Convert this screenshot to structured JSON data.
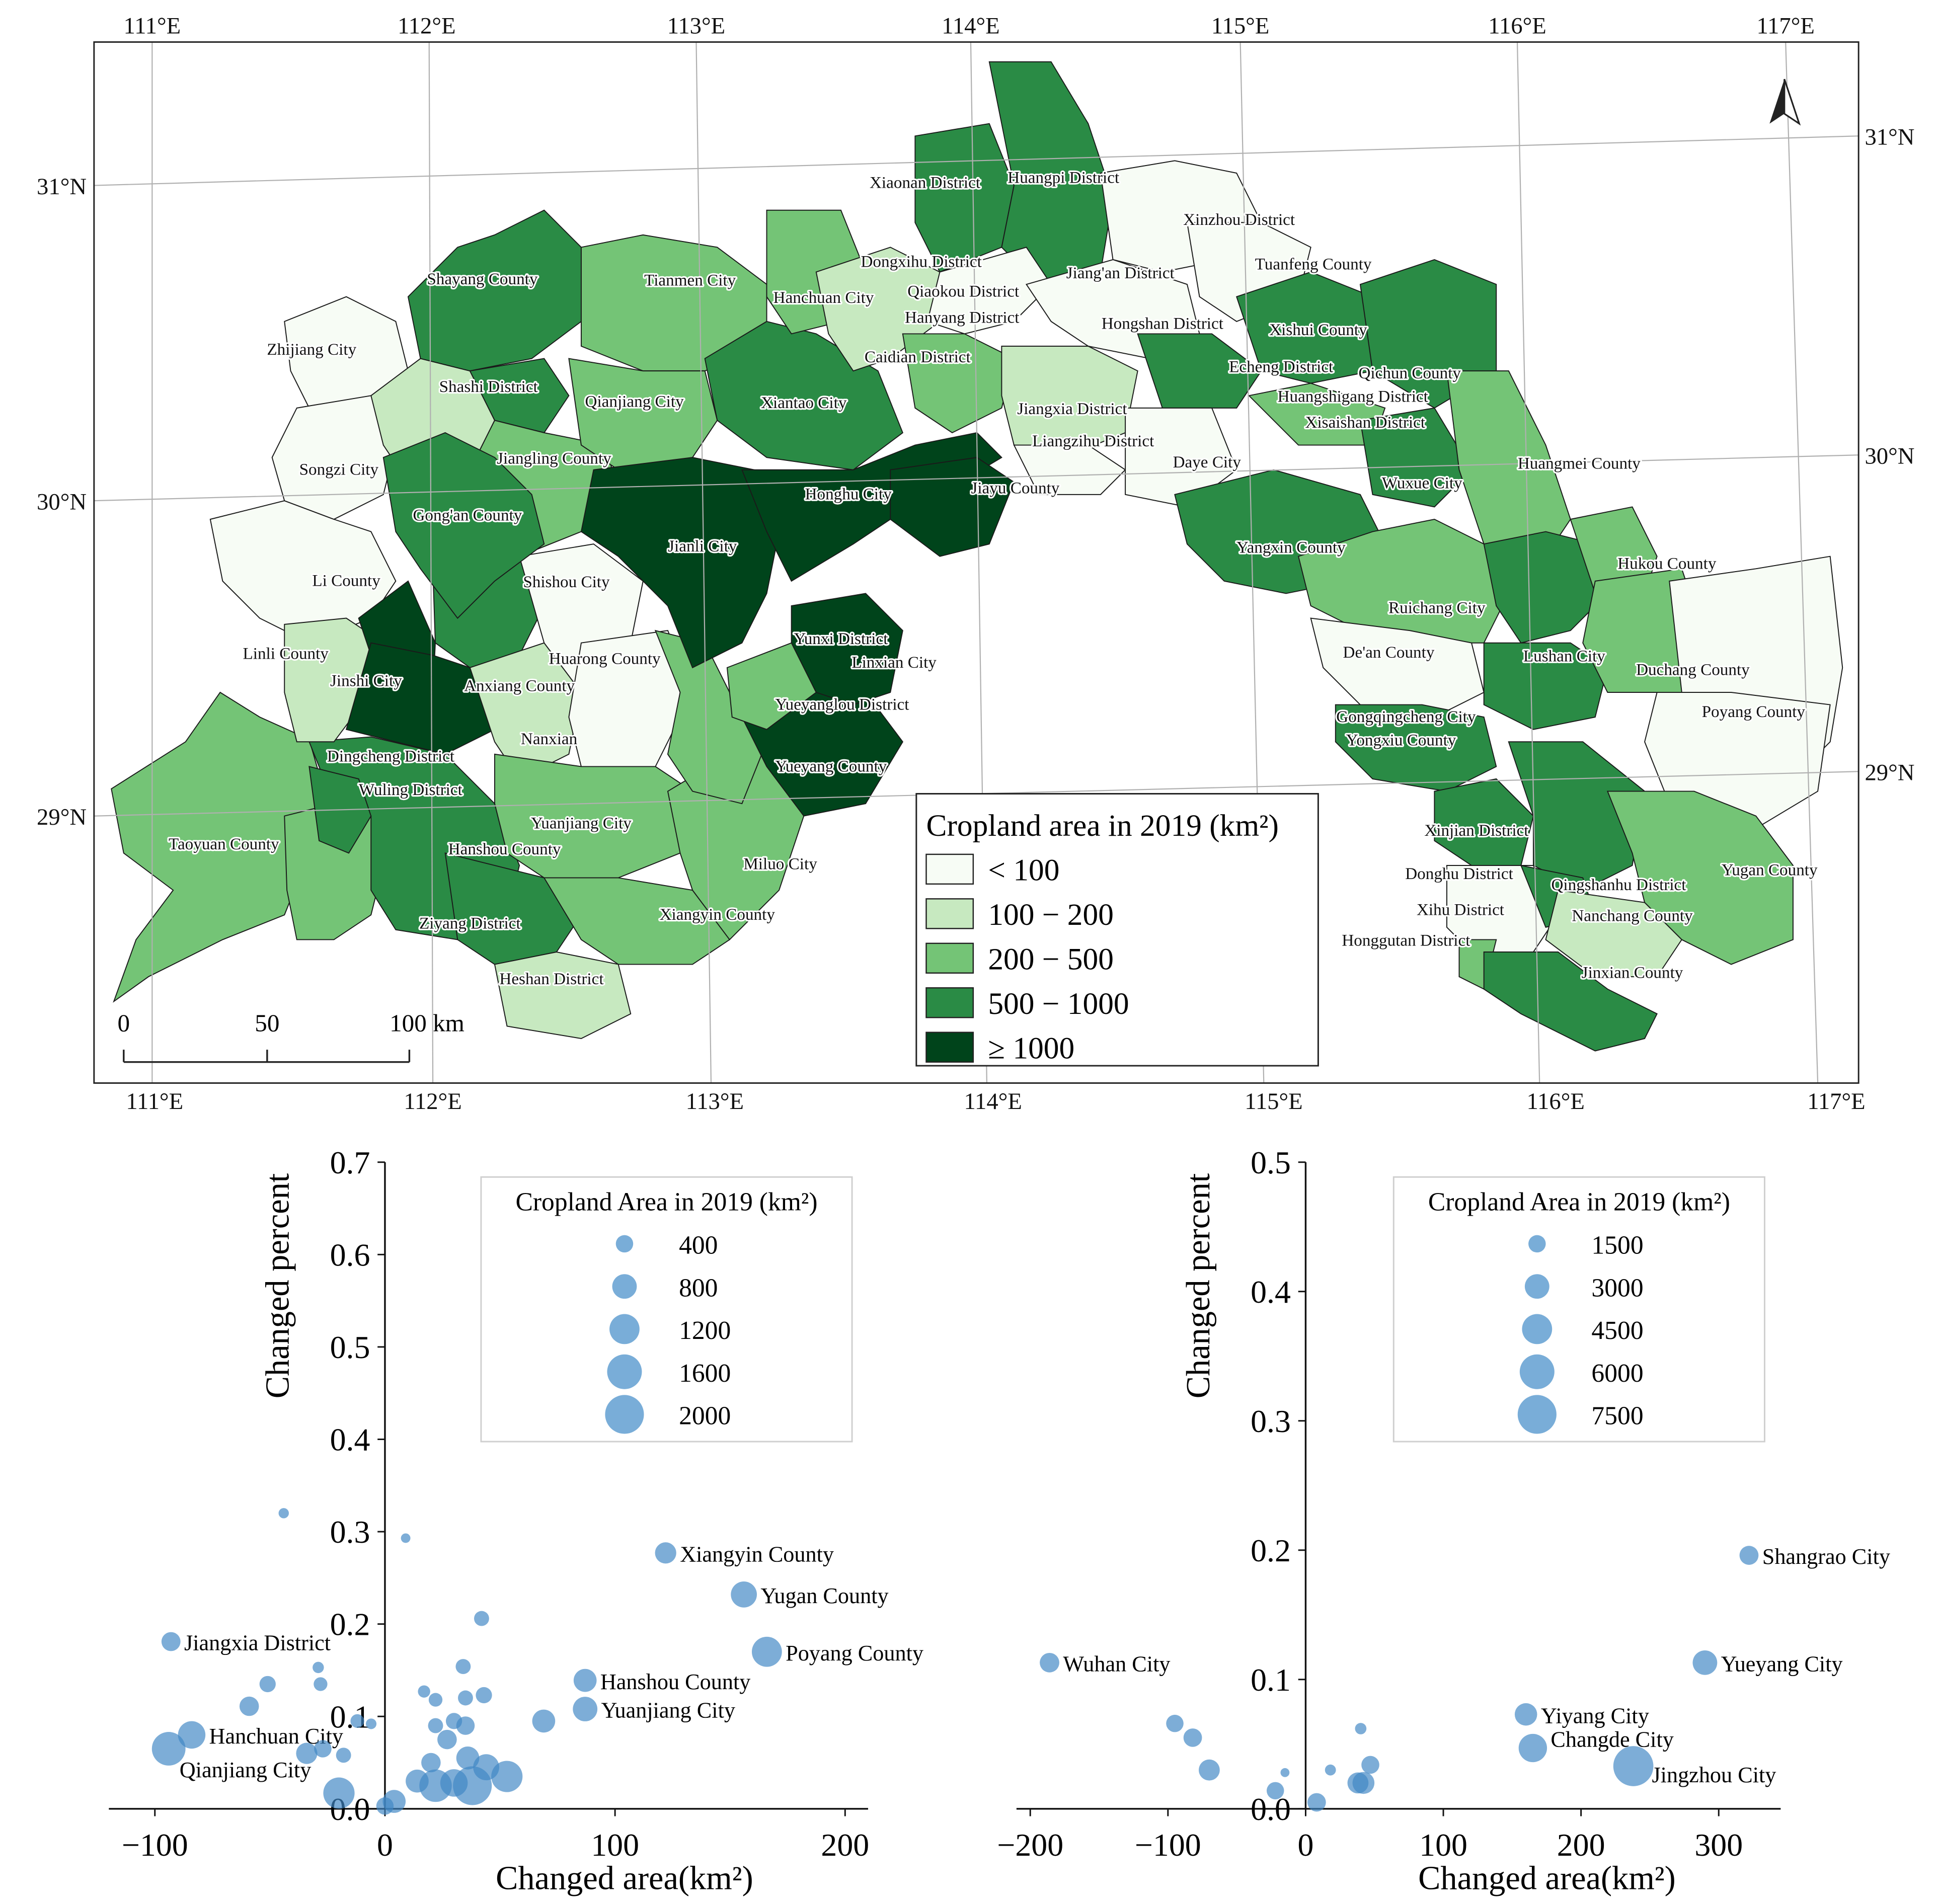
{
  "map": {
    "top_lon_labels": [
      "111°E",
      "112°E",
      "113°E",
      "114°E",
      "115°E",
      "116°E",
      "117°E"
    ],
    "bottom_lon_labels": [
      "111°E",
      "112°E",
      "113°E",
      "114°E",
      "115°E",
      "116°E",
      "117°E"
    ],
    "left_lat_labels": [
      "31°N",
      "30°N",
      "29°N"
    ],
    "right_lat_labels": [
      "31°N",
      "30°N",
      "29°N"
    ],
    "legend": {
      "title": "Cropland area in 2019 (km²)",
      "classes": [
        {
          "label": "< 100",
          "color": "#f7fcf5"
        },
        {
          "label": "100 − 200",
          "color": "#c7e9c0"
        },
        {
          "label": "200 − 500",
          "color": "#74c476"
        },
        {
          "label": "500 − 1000",
          "color": "#2a8b45"
        },
        {
          "label": "≥ 1000",
          "color": "#00441b"
        }
      ]
    },
    "scale_bar": {
      "labels": [
        "0",
        "50",
        "100 km"
      ]
    },
    "north_arrow": "north-arrow",
    "regions": [
      {
        "name": "Xiaonan District",
        "cls": 2
      },
      {
        "name": "Huangpi District",
        "cls": 2
      },
      {
        "name": "Xinzhou District",
        "cls": 3
      },
      {
        "name": "Dongxihu District",
        "cls": 3
      },
      {
        "name": "Jiang'an District",
        "cls": 0
      },
      {
        "name": "Tuanfeng County",
        "cls": 1
      },
      {
        "name": "Shayang County",
        "cls": 4
      },
      {
        "name": "Tianmen City",
        "cls": 4
      },
      {
        "name": "Hanchuan City",
        "cls": 3
      },
      {
        "name": "Qiaokou District",
        "cls": 1
      },
      {
        "name": "Hanyang District",
        "cls": 0
      },
      {
        "name": "Hongshan District",
        "cls": 0
      },
      {
        "name": "Xishui County",
        "cls": 2
      },
      {
        "name": "Zhijiang City",
        "cls": 3
      },
      {
        "name": "Caidian District",
        "cls": 2
      },
      {
        "name": "Echeng District",
        "cls": 1
      },
      {
        "name": "Qichun County",
        "cls": 2
      },
      {
        "name": "Shashi District",
        "cls": 2
      },
      {
        "name": "Qianjiang City",
        "cls": 4
      },
      {
        "name": "Xiantao City",
        "cls": 4
      },
      {
        "name": "Jiangxia District",
        "cls": 2
      },
      {
        "name": "Huangshigang District",
        "cls": 0
      },
      {
        "name": "Xisaishan District",
        "cls": 0
      },
      {
        "name": "Liangzihu District",
        "cls": 1
      },
      {
        "name": "Songzi City",
        "cls": 3
      },
      {
        "name": "Jiangling County",
        "cls": 3
      },
      {
        "name": "Daye City",
        "cls": 2
      },
      {
        "name": "Huangmei County",
        "cls": 3
      },
      {
        "name": "Jiayu County",
        "cls": 2
      },
      {
        "name": "Wuxue City",
        "cls": 2
      },
      {
        "name": "Honghu City",
        "cls": 3
      },
      {
        "name": "Gong'an County",
        "cls": 4
      },
      {
        "name": "Jianli City",
        "cls": 4
      },
      {
        "name": "Yangxin County",
        "cls": 2
      },
      {
        "name": "Hukou County",
        "cls": 1
      },
      {
        "name": "Li County",
        "cls": 3
      },
      {
        "name": "Shishou City",
        "cls": 3
      },
      {
        "name": "Ruichang City",
        "cls": 0
      },
      {
        "name": "Yunxi District",
        "cls": 0
      },
      {
        "name": "Linli County",
        "cls": 3
      },
      {
        "name": "Huarong County",
        "cls": 3
      },
      {
        "name": "De'an County",
        "cls": 0
      },
      {
        "name": "Lushan City",
        "cls": 0
      },
      {
        "name": "Linxian City",
        "cls": 2
      },
      {
        "name": "Jinshi City",
        "cls": 1
      },
      {
        "name": "Anxiang County",
        "cls": 3
      },
      {
        "name": "Duchang County",
        "cls": 2
      },
      {
        "name": "Yueyanglou District",
        "cls": 0
      },
      {
        "name": "Gongqingcheng City",
        "cls": 0
      },
      {
        "name": "Poyang County",
        "cls": 4
      },
      {
        "name": "Nanxian",
        "cls": 3
      },
      {
        "name": "Yongxiu County",
        "cls": 2
      },
      {
        "name": "Dingcheng District",
        "cls": 3
      },
      {
        "name": "Yueyang County",
        "cls": 2
      },
      {
        "name": "Wuling District",
        "cls": 0
      },
      {
        "name": "Yuanjiang City",
        "cls": 3
      },
      {
        "name": "Xinjian District",
        "cls": 3
      },
      {
        "name": "Taoyuan County",
        "cls": 2
      },
      {
        "name": "Hanshou County",
        "cls": 3
      },
      {
        "name": "Miluo City",
        "cls": 2
      },
      {
        "name": "Donghu District",
        "cls": 0
      },
      {
        "name": "Qingshanhu District",
        "cls": 0
      },
      {
        "name": "Yugan County",
        "cls": 3
      },
      {
        "name": "Xiangyin County",
        "cls": 3
      },
      {
        "name": "Ziyang District",
        "cls": 2
      },
      {
        "name": "Xihu District",
        "cls": 0
      },
      {
        "name": "Nanchang County",
        "cls": 3
      },
      {
        "name": "Honggutan District",
        "cls": 1
      },
      {
        "name": "Heshan District",
        "cls": 2
      },
      {
        "name": "Jinxian County",
        "cls": 3
      }
    ]
  },
  "chart_data": [
    {
      "type": "scatter",
      "title": "",
      "xlabel": "Changed area(km²)",
      "ylabel": "Changed percent",
      "xlim": [
        -120,
        210
      ],
      "ylim": [
        0,
        0.7
      ],
      "xticks": [
        "−100",
        "0",
        "100",
        "200"
      ],
      "yticks": [
        "0.0",
        "0.1",
        "0.2",
        "0.3",
        "0.4",
        "0.5",
        "0.6",
        "0.7"
      ],
      "size_legend": {
        "title": "Cropland Area in 2019 (km²)",
        "labels": [
          "400",
          "800",
          "1200",
          "1600",
          "2000"
        ],
        "values": [
          400,
          800,
          1200,
          1600,
          2000
        ]
      },
      "points": [
        {
          "x": 122,
          "y": 0.277,
          "s": 600,
          "label": "Xiangyin County"
        },
        {
          "x": 156,
          "y": 0.232,
          "s": 900,
          "label": "Yugan County"
        },
        {
          "x": 166,
          "y": 0.17,
          "s": 1200,
          "label": "Poyang County"
        },
        {
          "x": 87,
          "y": 0.139,
          "s": 700,
          "label": "Hanshou County"
        },
        {
          "x": 87,
          "y": 0.108,
          "s": 800,
          "label": "Yuanjiang City"
        },
        {
          "x": -93,
          "y": 0.181,
          "s": 480,
          "label": "Jiangxia District"
        },
        {
          "x": -84,
          "y": 0.08,
          "s": 1000,
          "label": "Hanchuan City"
        },
        {
          "x": -94,
          "y": 0.065,
          "s": 1500,
          "label": "Qianjiang City"
        },
        {
          "x": -44,
          "y": 0.32,
          "s": 140,
          "label": ""
        },
        {
          "x": 9,
          "y": 0.293,
          "s": 120,
          "label": ""
        },
        {
          "x": 42,
          "y": 0.206,
          "s": 300,
          "label": ""
        },
        {
          "x": 34,
          "y": 0.154,
          "s": 300,
          "label": ""
        },
        {
          "x": -51,
          "y": 0.135,
          "s": 350,
          "label": ""
        },
        {
          "x": -28,
          "y": 0.135,
          "s": 250,
          "label": ""
        },
        {
          "x": -29,
          "y": 0.153,
          "s": 170,
          "label": ""
        },
        {
          "x": -59,
          "y": 0.111,
          "s": 500,
          "label": ""
        },
        {
          "x": 17,
          "y": 0.127,
          "s": 200,
          "label": ""
        },
        {
          "x": 22,
          "y": 0.118,
          "s": 250,
          "label": ""
        },
        {
          "x": 35,
          "y": 0.12,
          "s": 300,
          "label": ""
        },
        {
          "x": 43,
          "y": 0.123,
          "s": 350,
          "label": ""
        },
        {
          "x": 69,
          "y": 0.095,
          "s": 700,
          "label": ""
        },
        {
          "x": -12,
          "y": 0.095,
          "s": 250,
          "label": ""
        },
        {
          "x": -6,
          "y": 0.092,
          "s": 150,
          "label": ""
        },
        {
          "x": 22,
          "y": 0.09,
          "s": 300,
          "label": ""
        },
        {
          "x": 30,
          "y": 0.095,
          "s": 350,
          "label": ""
        },
        {
          "x": 35,
          "y": 0.09,
          "s": 450,
          "label": ""
        },
        {
          "x": 27,
          "y": 0.075,
          "s": 500,
          "label": ""
        },
        {
          "x": -34,
          "y": 0.06,
          "s": 600,
          "label": ""
        },
        {
          "x": -27,
          "y": 0.065,
          "s": 400,
          "label": ""
        },
        {
          "x": -18,
          "y": 0.058,
          "s": 300,
          "label": ""
        },
        {
          "x": 20,
          "y": 0.05,
          "s": 500,
          "label": ""
        },
        {
          "x": 36,
          "y": 0.055,
          "s": 700,
          "label": ""
        },
        {
          "x": 44,
          "y": 0.045,
          "s": 900,
          "label": ""
        },
        {
          "x": 53,
          "y": 0.035,
          "s": 1300,
          "label": ""
        },
        {
          "x": 14,
          "y": 0.03,
          "s": 700,
          "label": ""
        },
        {
          "x": 22,
          "y": 0.025,
          "s": 1400,
          "label": ""
        },
        {
          "x": 38,
          "y": 0.025,
          "s": 2000,
          "label": ""
        },
        {
          "x": 30,
          "y": 0.028,
          "s": 1000,
          "label": ""
        },
        {
          "x": -20,
          "y": 0.017,
          "s": 1300,
          "label": ""
        },
        {
          "x": 4,
          "y": 0.008,
          "s": 700,
          "label": ""
        },
        {
          "x": 0,
          "y": 0.003,
          "s": 400,
          "label": ""
        }
      ]
    },
    {
      "type": "scatter",
      "title": "",
      "xlabel": "Changed area(km²)",
      "ylabel": "Changed percent",
      "xlim": [
        -210,
        345
      ],
      "ylim": [
        0,
        0.5
      ],
      "xticks": [
        "−200",
        "−100",
        "0",
        "100",
        "200",
        "300"
      ],
      "yticks": [
        "0.0",
        "0.1",
        "0.2",
        "0.3",
        "0.4",
        "0.5"
      ],
      "size_legend": {
        "title": "Cropland Area in 2019 (km²)",
        "labels": [
          "1500",
          "3000",
          "4500",
          "6000",
          "7500"
        ],
        "values": [
          1500,
          3000,
          4500,
          6000,
          7500
        ]
      },
      "points": [
        {
          "x": 322,
          "y": 0.196,
          "s": 1800,
          "label": "Shangrao City"
        },
        {
          "x": 290,
          "y": 0.113,
          "s": 3000,
          "label": "Yueyang City"
        },
        {
          "x": 160,
          "y": 0.073,
          "s": 2500,
          "label": "Yiyang City"
        },
        {
          "x": 165,
          "y": 0.047,
          "s": 4000,
          "label": "Changde City"
        },
        {
          "x": 238,
          "y": 0.033,
          "s": 8000,
          "label": "Jingzhou City"
        },
        {
          "x": -186,
          "y": 0.113,
          "s": 1900,
          "label": "Wuhan City"
        },
        {
          "x": -95,
          "y": 0.066,
          "s": 1500,
          "label": ""
        },
        {
          "x": -82,
          "y": 0.055,
          "s": 1700,
          "label": ""
        },
        {
          "x": -70,
          "y": 0.03,
          "s": 2200,
          "label": ""
        },
        {
          "x": -22,
          "y": 0.014,
          "s": 1500,
          "label": ""
        },
        {
          "x": 40,
          "y": 0.062,
          "s": 650,
          "label": ""
        },
        {
          "x": 18,
          "y": 0.03,
          "s": 600,
          "label": ""
        },
        {
          "x": 47,
          "y": 0.034,
          "s": 1600,
          "label": ""
        },
        {
          "x": 38,
          "y": 0.02,
          "s": 2200,
          "label": ""
        },
        {
          "x": 42,
          "y": 0.02,
          "s": 2400,
          "label": ""
        },
        {
          "x": 8,
          "y": 0.005,
          "s": 1700,
          "label": ""
        },
        {
          "x": -15,
          "y": 0.028,
          "s": 400,
          "label": ""
        }
      ]
    }
  ]
}
